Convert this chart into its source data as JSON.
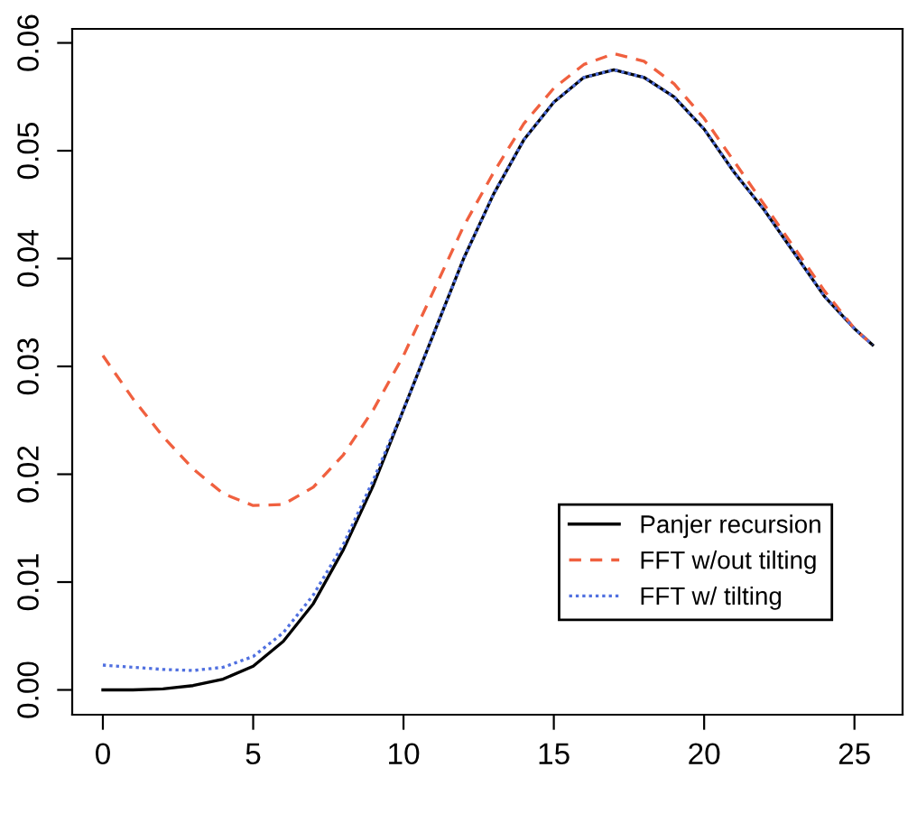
{
  "chart_data": {
    "type": "line",
    "x": [
      0,
      1,
      2,
      3,
      4,
      5,
      6,
      7,
      8,
      9,
      10,
      11,
      12,
      13,
      14,
      15,
      16,
      17,
      18,
      19,
      20,
      21,
      22,
      23,
      24,
      25,
      25.6
    ],
    "series": [
      {
        "name": "Panjer recursion",
        "color": "#000000",
        "line_style": "solid",
        "values": [
          0,
          0,
          0.0001,
          0.0004,
          0.001,
          0.0022,
          0.0045,
          0.008,
          0.013,
          0.019,
          0.026,
          0.033,
          0.04,
          0.046,
          0.051,
          0.0545,
          0.0568,
          0.0575,
          0.0568,
          0.055,
          0.052,
          0.048,
          0.0445,
          0.0405,
          0.0365,
          0.0335,
          0.032
        ]
      },
      {
        "name": "FFT w/out tilting",
        "color": "#f0603f",
        "line_style": "dashed",
        "values": [
          0.031,
          0.027,
          0.0235,
          0.0205,
          0.0182,
          0.0171,
          0.0172,
          0.0188,
          0.0218,
          0.026,
          0.031,
          0.037,
          0.043,
          0.048,
          0.0525,
          0.0558,
          0.058,
          0.059,
          0.0583,
          0.0562,
          0.053,
          0.049,
          0.045,
          0.041,
          0.037,
          0.0335,
          0.032
        ]
      },
      {
        "name": "FFT w/ tilting",
        "color": "#5070e0",
        "line_style": "dotted",
        "values": [
          0.0023,
          0.0021,
          0.0019,
          0.0018,
          0.0021,
          0.0031,
          0.0053,
          0.0088,
          0.0135,
          0.0195,
          0.026,
          0.033,
          0.04,
          0.046,
          0.051,
          0.0545,
          0.0568,
          0.0575,
          0.0568,
          0.055,
          0.052,
          0.048,
          0.0445,
          0.0405,
          0.0365,
          0.0335,
          0.032
        ]
      }
    ],
    "xlim": [
      -1.02,
      26.6
    ],
    "ylim": [
      -0.0023,
      0.0613
    ],
    "xticks": [
      0,
      5,
      10,
      15,
      20,
      25
    ],
    "yticks": [
      {
        "value": 0,
        "label": "0.00"
      },
      {
        "value": 0.01,
        "label": "0.01"
      },
      {
        "value": 0.02,
        "label": "0.02"
      },
      {
        "value": 0.03,
        "label": "0.03"
      },
      {
        "value": 0.04,
        "label": "0.04"
      },
      {
        "value": 0.05,
        "label": "0.05"
      },
      {
        "value": 0.06,
        "label": "0.06"
      }
    ],
    "legend": "bottom right",
    "grid": false
  }
}
